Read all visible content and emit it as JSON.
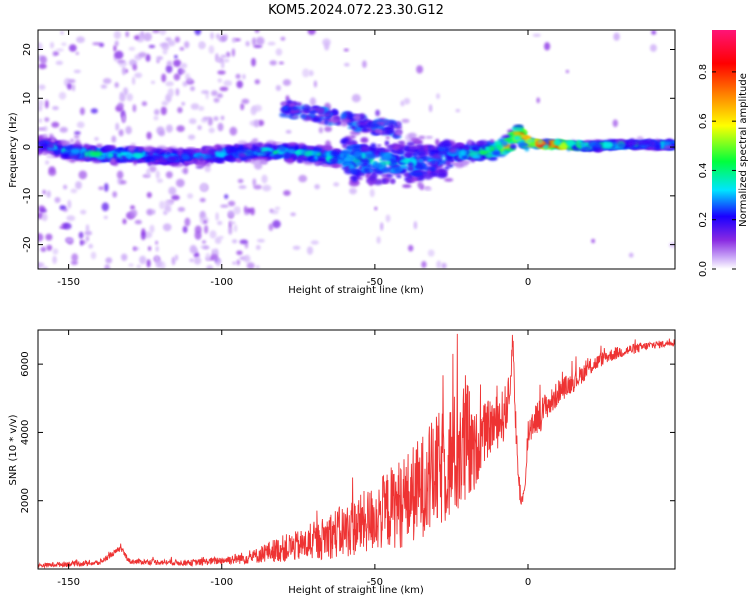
{
  "title": "KOM5.2024.072.23.30.G12",
  "chart_data": [
    {
      "type": "heatmap",
      "xlabel": "Height of straight line (km)",
      "ylabel": "Frequency (Hz)",
      "xlim": [
        -160,
        48
      ],
      "ylim": [
        -25,
        24
      ],
      "xticks": [
        -150,
        -100,
        -50,
        0
      ],
      "yticks": [
        20,
        10,
        0,
        -10,
        -20
      ],
      "colorbar": {
        "label": "Normalized spectral amplitude",
        "range": [
          0,
          0.97
        ],
        "ticks": [
          "0.0",
          "0.2",
          "0.4",
          "0.6",
          "0.8"
        ],
        "colormap": [
          "#ffffff",
          "#c9a6f7",
          "#8a2be2",
          "#1a00ff",
          "#00e5ff",
          "#00ff3c",
          "#ffff00",
          "#ff8c00",
          "#ff0000",
          "#ff1477"
        ]
      },
      "ridge": {
        "x": [
          -158,
          -150,
          -140,
          -130,
          -120,
          -110,
          -100,
          -90,
          -80,
          -70,
          -60,
          -50,
          -40,
          -30,
          -20,
          -15,
          -10,
          -6,
          -3,
          0,
          5,
          10,
          20,
          30,
          40,
          48
        ],
        "y": [
          0.5,
          -1,
          -1.5,
          -1.5,
          -2,
          -2,
          -1.5,
          -1,
          -1,
          -1.5,
          -2.5,
          -3,
          -3.5,
          -2.5,
          -1,
          -1,
          -0.5,
          0.5,
          3,
          1,
          0.5,
          0.5,
          0.2,
          0.5,
          0.5,
          0.5
        ],
        "amplitude": [
          0.3,
          0.35,
          0.4,
          0.35,
          0.3,
          0.3,
          0.35,
          0.35,
          0.4,
          0.4,
          0.4,
          0.35,
          0.35,
          0.3,
          0.4,
          0.45,
          0.55,
          0.7,
          0.75,
          0.85,
          0.9,
          0.9,
          0.45,
          0.4,
          0.35,
          0.4
        ]
      }
    },
    {
      "type": "line",
      "xlabel": "Height of straight line (km)",
      "ylabel": "SNR (10 * v/v)",
      "xlim": [
        -160,
        48
      ],
      "ylim": [
        0,
        7000
      ],
      "xticks": [
        -150,
        -100,
        -50,
        0
      ],
      "yticks": [
        2000,
        4000,
        6000
      ],
      "color": "#ee3333",
      "series": [
        {
          "x": [
            -160,
            -150,
            -140,
            -133,
            -130,
            -120,
            -110,
            -100,
            -90,
            -85,
            -80,
            -70,
            -65,
            -60,
            -55,
            -50,
            -45,
            -40,
            -35,
            -30,
            -25,
            -22,
            -20,
            -18,
            -15,
            -12,
            -10,
            -8,
            -6,
            -5,
            -4,
            -3,
            -2,
            -1,
            0,
            2,
            4,
            6,
            8,
            10,
            15,
            20,
            25,
            30,
            35,
            40,
            45,
            48
          ],
          "y": [
            100,
            150,
            180,
            600,
            220,
            200,
            180,
            250,
            350,
            500,
            600,
            750,
            1000,
            1100,
            1300,
            1500,
            1800,
            2000,
            2400,
            2800,
            3200,
            3500,
            3700,
            3300,
            3900,
            4200,
            4300,
            4500,
            5000,
            6900,
            4200,
            2500,
            2000,
            2200,
            4000,
            4400,
            4500,
            4800,
            4900,
            5200,
            5500,
            5900,
            6200,
            6350,
            6450,
            6550,
            6600,
            6650
          ],
          "noise": [
            60,
            80,
            80,
            80,
            80,
            80,
            90,
            120,
            200,
            300,
            400,
            500,
            700,
            800,
            900,
            1000,
            1200,
            1400,
            1500,
            1700,
            1800,
            2000,
            2200,
            1200,
            900,
            800,
            800,
            800,
            700,
            300,
            500,
            400,
            300,
            300,
            500,
            500,
            500,
            400,
            400,
            350,
            300,
            250,
            200,
            180,
            150,
            120,
            100,
            100
          ]
        }
      ]
    }
  ]
}
